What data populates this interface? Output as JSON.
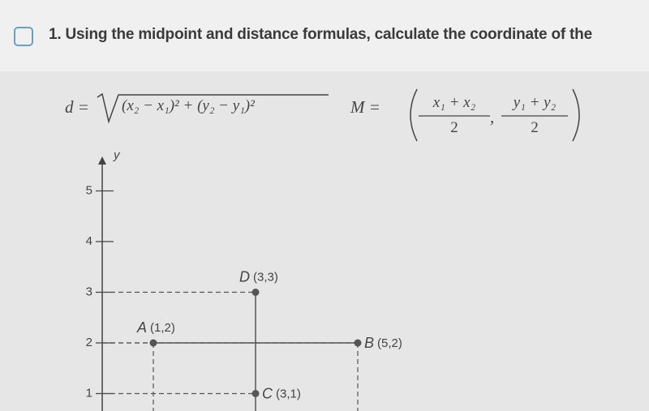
{
  "question": {
    "text": "1. Using the midpoint and distance formulas, calculate the coordinate of the"
  },
  "formulas": {
    "distance": {
      "lhs": "d =",
      "radicand": "(x₂ − x₁)² + (y₂ − y₁)²"
    },
    "midpoint": {
      "lhs": "M =",
      "x_numerator": "x₁ + x₂",
      "x_denominator": "2",
      "separator": ",",
      "y_numerator": "y₁ + y₂",
      "y_denominator": "2"
    }
  },
  "graph": {
    "y_axis_label": "y",
    "yticks": [
      1,
      2,
      3,
      4,
      5
    ],
    "points": [
      {
        "name": "A",
        "coords": "(1,2)",
        "x": 1,
        "y": 2
      },
      {
        "name": "B",
        "coords": "(5,2)",
        "x": 5,
        "y": 2
      },
      {
        "name": "C",
        "coords": "(3,1)",
        "x": 3,
        "y": 1
      },
      {
        "name": "D",
        "coords": "(3,3)",
        "x": 3,
        "y": 3
      }
    ]
  }
}
